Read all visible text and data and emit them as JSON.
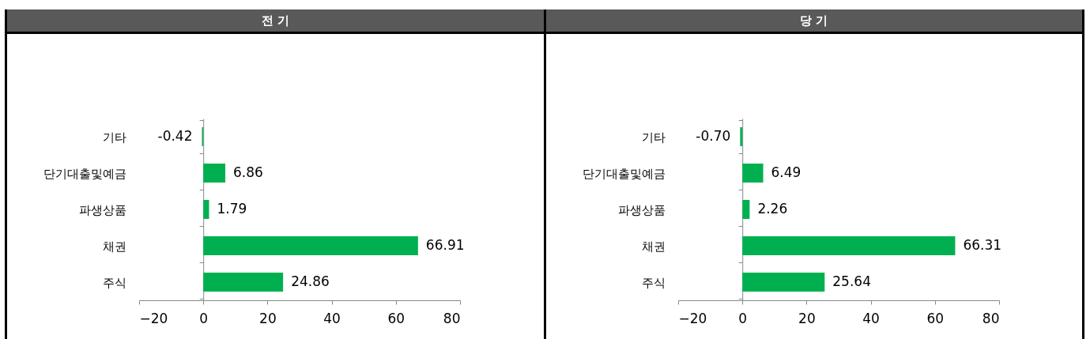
{
  "chart_data": [
    {
      "type": "bar",
      "title": "전 기",
      "orientation": "horizontal",
      "categories": [
        "기타",
        "단기대출및예금",
        "파생상품",
        "채권",
        "주식"
      ],
      "values": [
        -0.42,
        6.86,
        1.79,
        66.91,
        24.86
      ],
      "value_labels": [
        "-0.42",
        "6.86",
        "1.79",
        "66.91",
        "24.86"
      ],
      "color": "#00b050",
      "xlim": [
        -20,
        80
      ],
      "xticks": [
        -20,
        0,
        20,
        40,
        60,
        80
      ]
    },
    {
      "type": "bar",
      "title": "당 기",
      "orientation": "horizontal",
      "categories": [
        "기타",
        "단기대출및예금",
        "파생상품",
        "채권",
        "주식"
      ],
      "values": [
        -0.7,
        6.49,
        2.26,
        66.31,
        25.64
      ],
      "value_labels": [
        "-0.70",
        "6.49",
        "2.26",
        "66.31",
        "25.64"
      ],
      "color": "#00b050",
      "xlim": [
        -20,
        80
      ],
      "xticks": [
        -20,
        0,
        20,
        40,
        60,
        80
      ]
    }
  ]
}
